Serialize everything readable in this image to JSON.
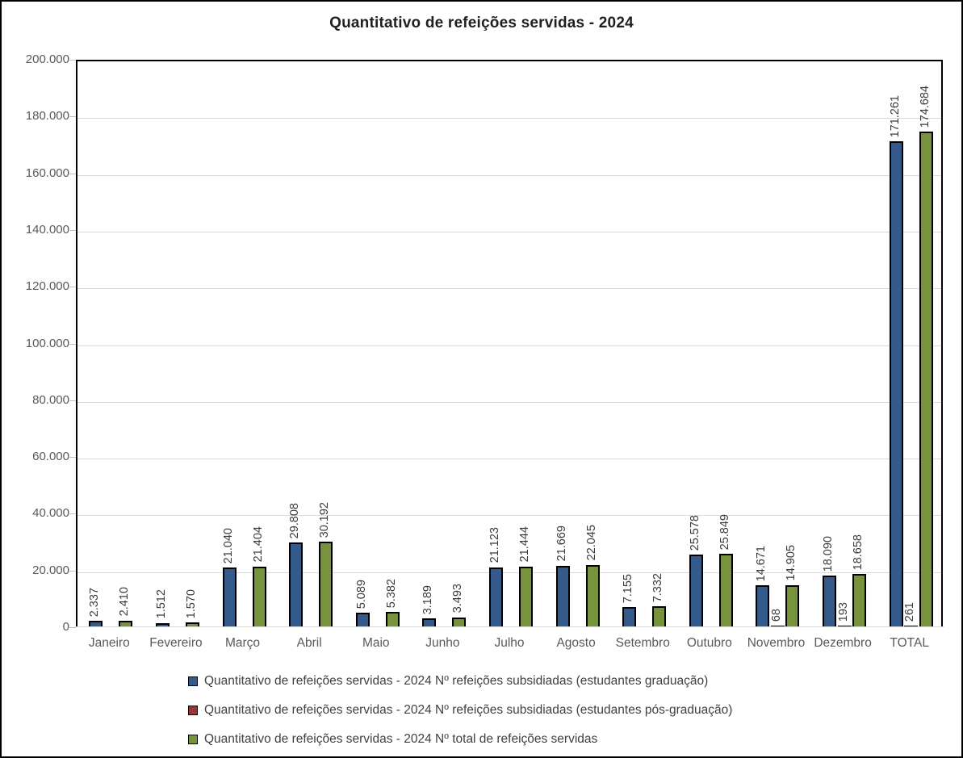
{
  "title": "Quantitativo de refeições servidas - 2024",
  "chart_data": {
    "type": "bar",
    "title": "Quantitativo de refeições servidas - 2024",
    "categories": [
      "Janeiro",
      "Fevereiro",
      "Março",
      "Abril",
      "Maio",
      "Junho",
      "Julho",
      "Agosto",
      "Setembro",
      "Outubro",
      "Novembro",
      "Dezembro",
      "TOTAL"
    ],
    "series": [
      {
        "name": "Quantitativo de refeições servidas - 2024 Nº refeições subsidiadas (estudantes graduação)",
        "color": "#345A8C",
        "values": [
          2337,
          1512,
          21040,
          29808,
          5089,
          3189,
          21123,
          21669,
          7155,
          25578,
          14671,
          18090,
          171261
        ],
        "labels": [
          "2.337",
          "1.512",
          "21.040",
          "29.808",
          "5.089",
          "3.189",
          "21.123",
          "21.669",
          "7.155",
          "25.578",
          "14.671",
          "18.090",
          "171.261"
        ]
      },
      {
        "name": "Quantitativo de refeições servidas - 2024 Nº refeições subsidiadas (estudantes pós-graduação)",
        "color": "#953735",
        "values": [
          0,
          0,
          0,
          0,
          0,
          0,
          0,
          0,
          0,
          0,
          68,
          193,
          261
        ],
        "labels": [
          "",
          "",
          "",
          "",
          "",
          "",
          "",
          "",
          "",
          "",
          "68",
          "193",
          "261"
        ]
      },
      {
        "name": "Quantitativo de refeições servidas - 2024 Nº total de refeições servidas",
        "color": "#77933C",
        "values": [
          2410,
          1570,
          21404,
          30192,
          5382,
          3493,
          21444,
          22045,
          7332,
          25849,
          14905,
          18658,
          174684
        ],
        "labels": [
          "2.410",
          "1.570",
          "21.404",
          "30.192",
          "5.382",
          "3.493",
          "21.444",
          "22.045",
          "7.332",
          "25.849",
          "14.905",
          "18.658",
          "174.684"
        ]
      }
    ],
    "ylim": [
      0,
      200000
    ],
    "y_ticks": [
      {
        "value": 0,
        "label": "0"
      },
      {
        "value": 20000,
        "label": "20.000"
      },
      {
        "value": 40000,
        "label": "40.000"
      },
      {
        "value": 60000,
        "label": "60.000"
      },
      {
        "value": 80000,
        "label": "80.000"
      },
      {
        "value": 100000,
        "label": "100.000"
      },
      {
        "value": 120000,
        "label": "120.000"
      },
      {
        "value": 140000,
        "label": "140.000"
      },
      {
        "value": 160000,
        "label": "160.000"
      },
      {
        "value": 180000,
        "label": "180.000"
      },
      {
        "value": 200000,
        "label": "200.000"
      }
    ],
    "grid": true,
    "legend_position": "bottom-left",
    "colors": {
      "bar_border": "#000000",
      "gridline": "#D9D9D9",
      "plot_border": "#000000",
      "axis_label": "#595959",
      "value_label": "#3A3A3A",
      "legend_text": "#404040",
      "title_text": "#1F1F1F"
    }
  }
}
